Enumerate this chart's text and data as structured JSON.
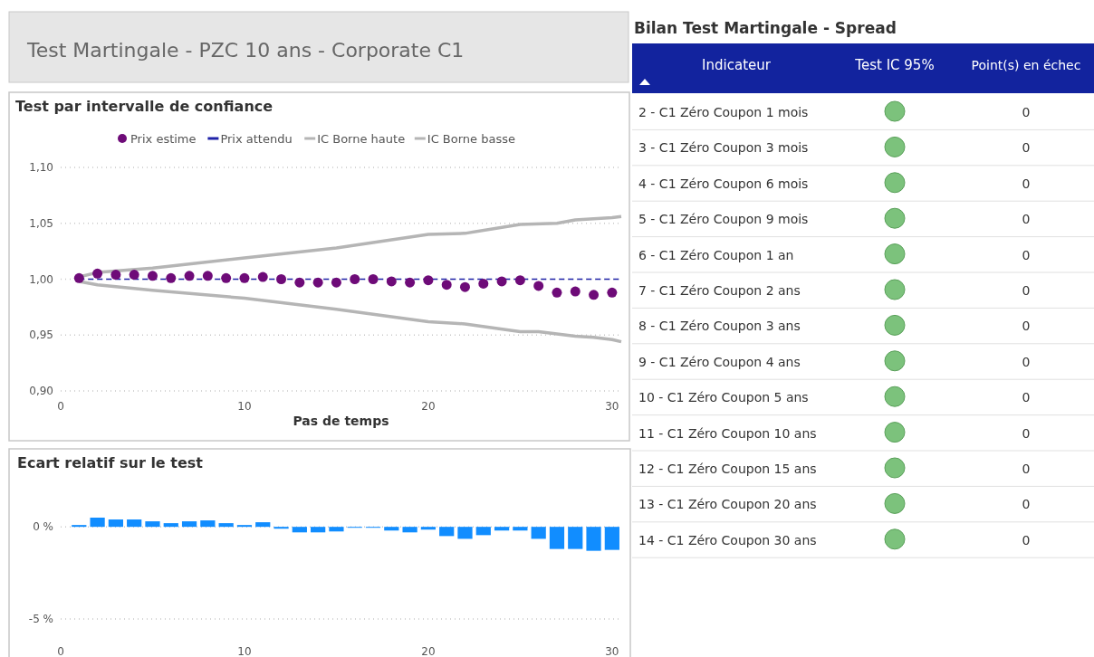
{
  "chart_data": [
    {
      "type": "other",
      "title": "Test Martingale - PZC 10 ans - Corporate C1"
    },
    {
      "type": "line",
      "title": "Test par intervalle de confiance",
      "xlabel": "Pas de temps",
      "xlim": [
        0,
        30.5
      ],
      "xticks": [
        0,
        10,
        20,
        30
      ],
      "ylim": [
        0.9,
        1.1
      ],
      "yticks": [
        {
          "value": 0.9,
          "label": "0,90"
        },
        {
          "value": 0.95,
          "label": "0,95"
        },
        {
          "value": 1.0,
          "label": "1,00"
        },
        {
          "value": 1.05,
          "label": "1,05"
        },
        {
          "value": 1.1,
          "label": "1,10"
        }
      ],
      "grid": "y",
      "legend": "top",
      "series": [
        {
          "name": "Prix estime",
          "type": "scatter",
          "marker": "circle",
          "color": "#6e0b78",
          "x": [
            1,
            2,
            3,
            4,
            5,
            6,
            7,
            8,
            9,
            10,
            11,
            12,
            13,
            14,
            15,
            16,
            17,
            18,
            19,
            20,
            21,
            22,
            23,
            24,
            25,
            26,
            27,
            28,
            29,
            30
          ],
          "values": [
            1.001,
            1.005,
            1.004,
            1.004,
            1.003,
            1.001,
            1.003,
            1.003,
            1.001,
            1.001,
            1.002,
            1.0,
            0.997,
            0.997,
            0.997,
            1.0,
            1.0,
            0.998,
            0.997,
            0.999,
            0.995,
            0.993,
            0.996,
            0.998,
            0.999,
            0.994,
            0.988,
            0.989,
            0.986,
            0.988
          ]
        },
        {
          "name": "Prix attendu",
          "type": "line",
          "line_style": "dashed",
          "color": "#1f22a8",
          "x": [
            1,
            30.5
          ],
          "values": [
            1.0,
            1.0
          ]
        },
        {
          "name": "IC Borne haute",
          "type": "line",
          "line_style": "solid",
          "color": "#b5b5b5",
          "x": [
            1,
            2,
            5,
            10,
            15,
            20,
            22,
            25,
            27,
            28,
            30,
            30.5
          ],
          "values": [
            1.002,
            1.006,
            1.01,
            1.019,
            1.028,
            1.04,
            1.041,
            1.049,
            1.05,
            1.053,
            1.055,
            1.056
          ]
        },
        {
          "name": "IC Borne basse",
          "type": "line",
          "line_style": "solid",
          "color": "#b5b5b5",
          "x": [
            1,
            2,
            5,
            10,
            15,
            20,
            22,
            25,
            26,
            27,
            28,
            29,
            30,
            30.5
          ],
          "values": [
            0.998,
            0.995,
            0.99,
            0.983,
            0.973,
            0.962,
            0.96,
            0.953,
            0.953,
            0.951,
            0.949,
            0.948,
            0.946,
            0.944
          ]
        }
      ]
    },
    {
      "type": "bar",
      "title": "Ecart relatif sur le test",
      "xlim": [
        0,
        30.5
      ],
      "xticks": [
        0,
        10,
        20,
        30
      ],
      "ylim": [
        -5,
        0.5
      ],
      "yticks": [
        {
          "value": -5,
          "label": "-5 %"
        },
        {
          "value": 0,
          "label": "0 %"
        }
      ],
      "grid": "y",
      "x": [
        1,
        2,
        3,
        4,
        5,
        6,
        7,
        8,
        9,
        10,
        11,
        12,
        13,
        14,
        15,
        16,
        17,
        18,
        19,
        20,
        21,
        22,
        23,
        24,
        25,
        26,
        27,
        28,
        29,
        30
      ],
      "color": "#118dff",
      "values": [
        0.1,
        0.5,
        0.4,
        0.4,
        0.3,
        0.2,
        0.3,
        0.35,
        0.2,
        0.1,
        0.25,
        -0.1,
        -0.3,
        -0.3,
        -0.25,
        -0.05,
        -0.05,
        -0.2,
        -0.3,
        -0.15,
        -0.5,
        -0.65,
        -0.45,
        -0.2,
        -0.2,
        -0.65,
        -1.2,
        -1.2,
        -1.3,
        -1.25
      ]
    },
    {
      "type": "other",
      "title": "Bilan Test Martingale - Spread",
      "annotations": [
        "Indicateur",
        "Test IC 95%",
        "Point(s) en échec"
      ],
      "categories": [
        "2 - C1 Zéro Coupon 1 mois",
        "3 - C1 Zéro Coupon 3 mois",
        "4 - C1 Zéro Coupon 6 mois",
        "5 - C1 Zéro Coupon 9 mois",
        "6 - C1 Zéro Coupon 1 an",
        "7 - C1 Zéro Coupon 2 ans",
        "8 - C1 Zéro Coupon 3 ans",
        "9 - C1 Zéro Coupon 4 ans",
        "10 - C1 Zéro Coupon 5 ans",
        "11 - C1 Zéro Coupon 10 ans",
        "12 - C1 Zéro Coupon 15 ans",
        "13 - C1 Zéro Coupon 20 ans",
        "14 - C1 Zéro Coupon 30 ans"
      ],
      "colors": [
        "#7cc27c",
        "#7cc27c",
        "#7cc27c",
        "#7cc27c",
        "#7cc27c",
        "#7cc27c",
        "#7cc27c",
        "#7cc27c",
        "#7cc27c",
        "#7cc27c",
        "#7cc27c",
        "#7cc27c",
        "#7cc27c"
      ],
      "values": [
        0,
        0,
        0,
        0,
        0,
        0,
        0,
        0,
        0,
        0,
        0,
        0,
        0
      ],
      "data_labels": true
    }
  ]
}
